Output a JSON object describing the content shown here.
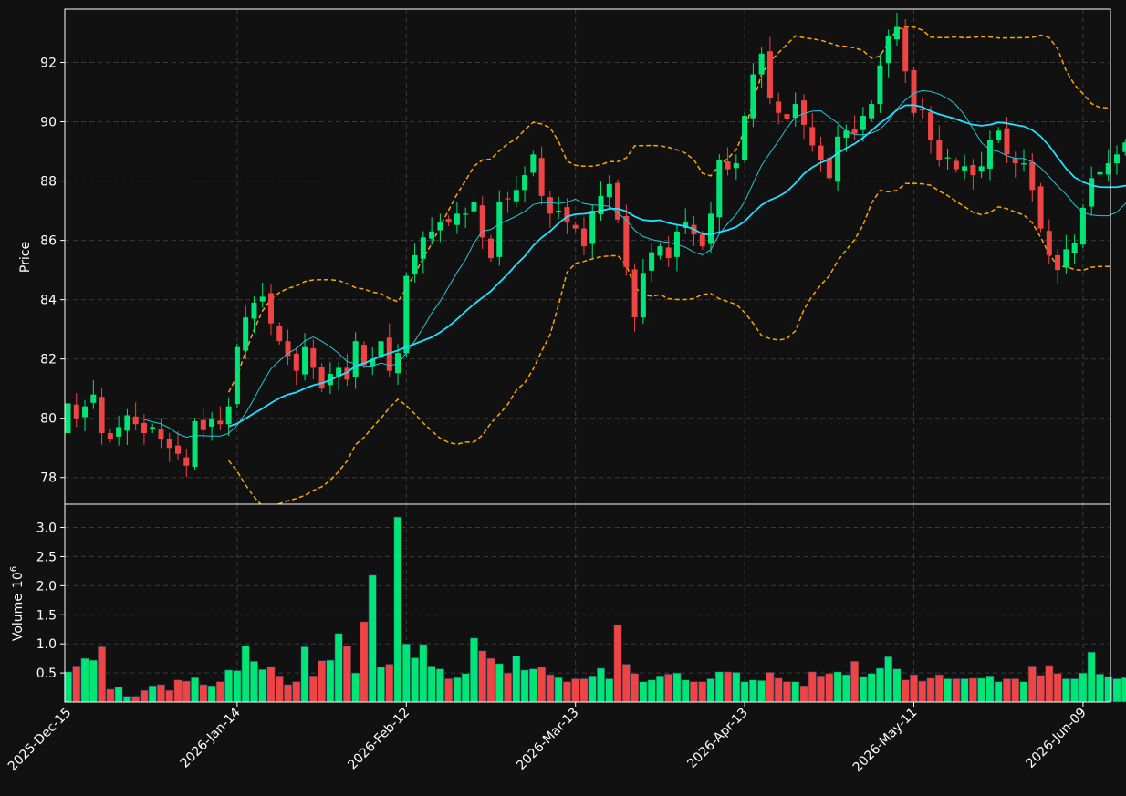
{
  "chart_data": {
    "type": "candlestick",
    "x_tick_labels": [
      "2025-Dec-15",
      "2026-Jan-14",
      "2026-Feb-12",
      "2026-Mar-13",
      "2026-Apr-13",
      "2026-May-11",
      "2026-Jun-09"
    ],
    "x_tick_index": [
      0,
      20,
      40,
      60,
      80,
      100,
      120
    ],
    "price_panel": {
      "ylabel": "Price",
      "ylim": [
        77.1,
        93.8
      ],
      "yticks": [
        78,
        80,
        82,
        84,
        86,
        88,
        90,
        92
      ],
      "grid": true
    },
    "volume_panel": {
      "ylabel": "Volume",
      "ylabel_exponent": "10",
      "ylabel_power": "6",
      "ylim": [
        0,
        3.4
      ],
      "yticks": [
        0.5,
        1.0,
        1.5,
        2.0,
        2.5,
        3.0
      ],
      "ytick_labels": [
        "0.5",
        "1.0",
        "1.5",
        "2.0",
        "2.5",
        "3.0"
      ],
      "grid": true
    },
    "colors": {
      "background": "#111111",
      "up": "#00e676",
      "down": "#ef4444",
      "ma_fast": "#22c7d6",
      "ma_slow": "#22e0ff",
      "bands": "#ffa500"
    },
    "closes": [
      80.5,
      80.0,
      80.4,
      80.8,
      79.5,
      79.3,
      79.7,
      80.1,
      79.8,
      79.5,
      79.7,
      79.3,
      79.0,
      78.8,
      78.4,
      79.9,
      79.6,
      80.0,
      79.8,
      80.4,
      82.4,
      83.4,
      83.9,
      84.1,
      83.2,
      82.6,
      82.1,
      81.6,
      82.4,
      81.7,
      81.0,
      81.5,
      81.7,
      81.3,
      82.6,
      81.8,
      82.0,
      82.6,
      81.6,
      82.2,
      84.8,
      85.5,
      86.1,
      86.3,
      86.6,
      86.6,
      86.9,
      86.9,
      87.3,
      86.1,
      85.4,
      87.3,
      87.4,
      87.7,
      88.2,
      88.9,
      87.5,
      86.9,
      87.0,
      86.6,
      86.4,
      85.8,
      87.0,
      87.5,
      87.9,
      86.7,
      85.1,
      83.4,
      84.9,
      85.6,
      85.8,
      85.4,
      86.3,
      86.6,
      86.2,
      85.8,
      86.9,
      88.7,
      88.4,
      88.6,
      90.2,
      91.6,
      92.3,
      90.8,
      90.3,
      90.1,
      90.6,
      89.9,
      89.2,
      88.7,
      88.1,
      89.5,
      89.7,
      89.6,
      90.2,
      90.6,
      91.9,
      92.9,
      93.2,
      91.7,
      90.3,
      90.4,
      89.4,
      88.7,
      88.8,
      88.4,
      88.5,
      88.2,
      88.5,
      89.4,
      89.7,
      88.9,
      88.6,
      88.6,
      87.7,
      86.4,
      85.5,
      85.0,
      85.7,
      85.9,
      87.1,
      88.1,
      88.3,
      88.6,
      88.9,
      89.3,
      88.5
    ],
    "volumes_millions": [
      0.52,
      0.62,
      0.75,
      0.72,
      0.95,
      0.22,
      0.26,
      0.1,
      0.1,
      0.2,
      0.28,
      0.3,
      0.2,
      0.38,
      0.36,
      0.42,
      0.3,
      0.28,
      0.35,
      0.55,
      0.54,
      0.97,
      0.7,
      0.56,
      0.61,
      0.45,
      0.3,
      0.35,
      0.95,
      0.45,
      0.71,
      0.72,
      1.18,
      0.96,
      0.5,
      1.38,
      2.18,
      0.6,
      0.65,
      3.18,
      1.0,
      0.76,
      0.99,
      0.62,
      0.57,
      0.4,
      0.42,
      0.49,
      1.1,
      0.88,
      0.75,
      0.66,
      0.5,
      0.79,
      0.55,
      0.57,
      0.6,
      0.47,
      0.42,
      0.35,
      0.4,
      0.4,
      0.45,
      0.58,
      0.4,
      1.33,
      0.65,
      0.49,
      0.35,
      0.38,
      0.45,
      0.48,
      0.5,
      0.38,
      0.35,
      0.35,
      0.4,
      0.52,
      0.52,
      0.51,
      0.35,
      0.38,
      0.37,
      0.51,
      0.41,
      0.35,
      0.35,
      0.28,
      0.52,
      0.45,
      0.49,
      0.52,
      0.47,
      0.7,
      0.44,
      0.49,
      0.58,
      0.78,
      0.57,
      0.38,
      0.47,
      0.36,
      0.41,
      0.47,
      0.4,
      0.4,
      0.4,
      0.41,
      0.41,
      0.45,
      0.35,
      0.4,
      0.4,
      0.35,
      0.62,
      0.46,
      0.63,
      0.49,
      0.4,
      0.4,
      0.5,
      0.86,
      0.48,
      0.44,
      0.4,
      0.42,
      0.38
    ]
  }
}
